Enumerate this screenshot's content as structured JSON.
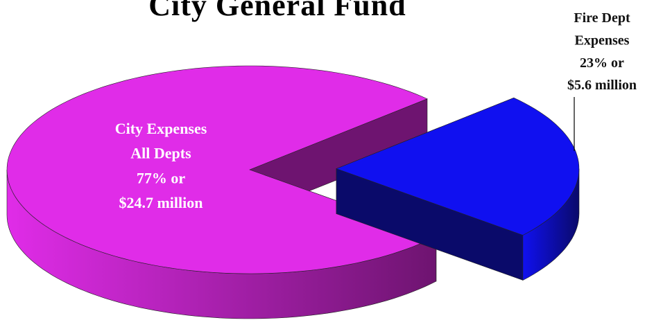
{
  "chart_data": {
    "type": "pie3d",
    "title": "City General Fund",
    "categories": [
      [
        "City Expenses",
        "All Depts"
      ],
      [
        "Fire Dept",
        "Expenses"
      ]
    ],
    "values": [
      77,
      23
    ],
    "value_labels": [
      "77% or",
      "23% or"
    ],
    "amounts": [
      24.7,
      5.6
    ],
    "amount_labels": [
      "$24.7 million",
      "$5.6 million"
    ],
    "colors": [
      "#e02ce8",
      "#1010f0"
    ],
    "side_colors": [
      "#6e1470",
      "#0a0a6a"
    ],
    "label_colors": [
      "#ffffff",
      "#111111"
    ],
    "exploded": [
      false,
      true
    ]
  }
}
